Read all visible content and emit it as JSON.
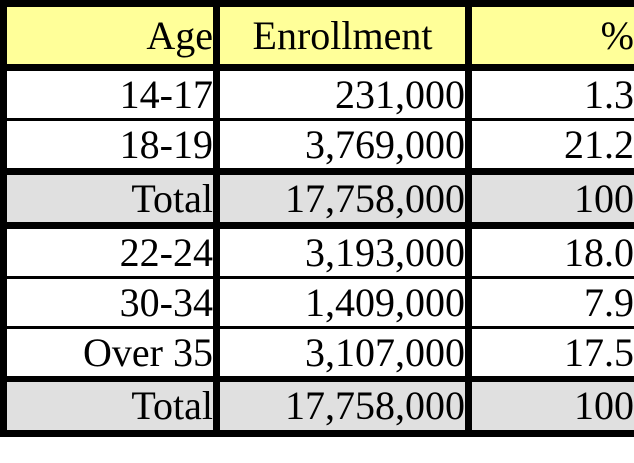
{
  "chart_data": {
    "type": "table",
    "title": "",
    "columns": [
      "Age",
      "Enrollment",
      "%"
    ],
    "rows": [
      [
        "14-17",
        "231,000",
        "1.3"
      ],
      [
        "18-19",
        "3,769,000",
        "21.2"
      ],
      [
        "Total",
        "17,758,000",
        "100"
      ],
      [
        "22-24",
        "3,193,000",
        "18.0"
      ],
      [
        "30-34",
        "1,409,000",
        "7.9"
      ],
      [
        "Over 35",
        "3,107,000",
        "17.5"
      ],
      [
        "Total",
        "17,758,000",
        "100"
      ]
    ],
    "total_row_indices": [
      2,
      6
    ],
    "colors": {
      "header_bg": "#ffff99",
      "total_row_bg": "#e0e0e0",
      "data_row_bg": "#ffffff",
      "border": "#000000",
      "text": "#000000"
    }
  }
}
